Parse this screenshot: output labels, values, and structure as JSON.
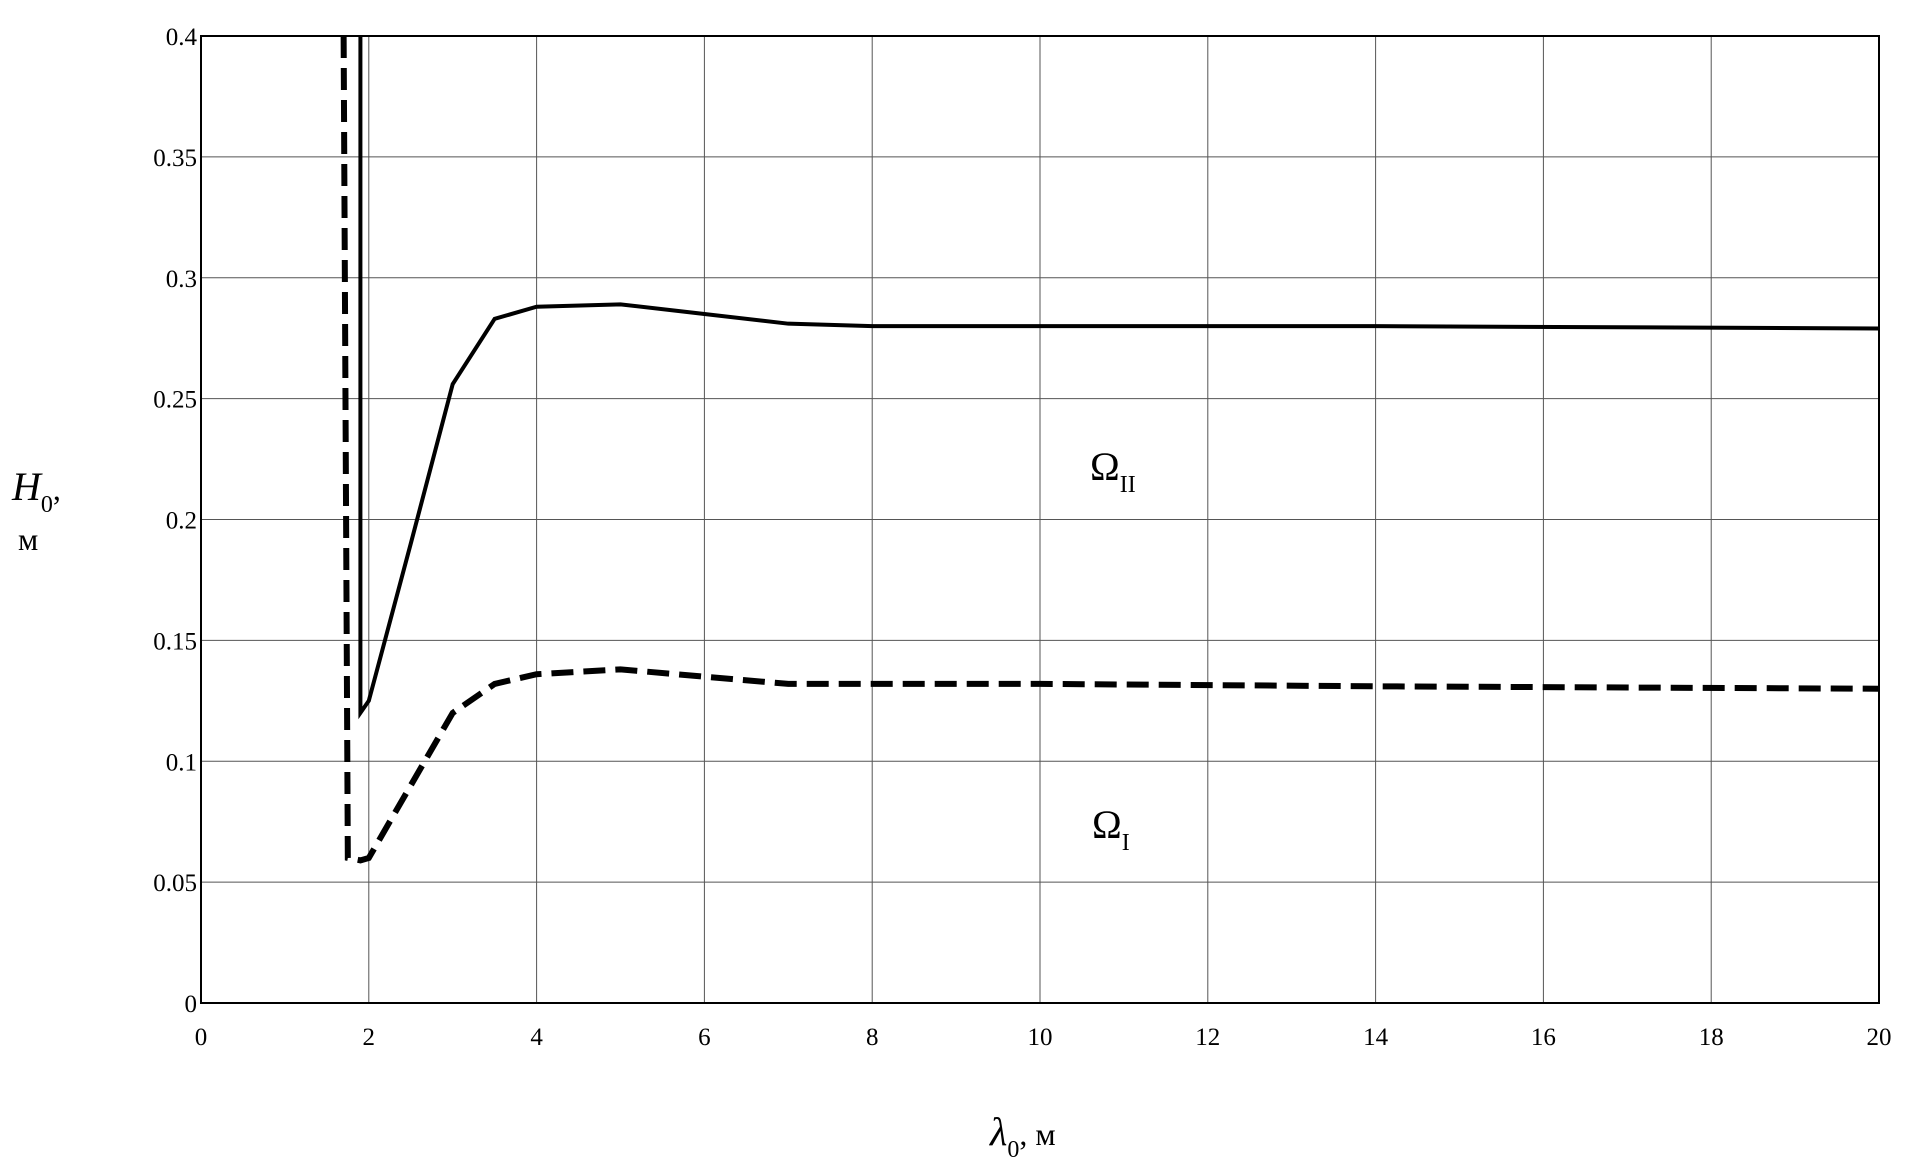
{
  "chart_data": {
    "type": "line",
    "x_label": {
      "symbol": "λ",
      "sub": "0",
      "unit": ", м"
    },
    "y_label": {
      "symbol": "H",
      "sub": "0",
      "unit": ",",
      "unit2": "м"
    },
    "series": [
      {
        "color": "#000000",
        "style": "solid",
        "x": [
          1.9,
          1.9,
          2,
          2.5,
          3,
          3.5,
          4,
          5,
          6,
          7,
          8,
          10,
          14,
          20
        ],
        "values": [
          0.4,
          0.12,
          0.125,
          0.19,
          0.256,
          0.283,
          0.288,
          0.289,
          0.285,
          0.281,
          0.28,
          0.28,
          0.28,
          0.279
        ]
      },
      {
        "color": "#000000",
        "style": "dashed",
        "x": [
          1.7,
          1.75,
          1.9,
          2,
          2.5,
          3,
          3.5,
          4,
          5,
          6,
          7,
          10,
          14,
          20
        ],
        "values": [
          0.4,
          0.06,
          0.059,
          0.06,
          0.09,
          0.12,
          0.132,
          0.136,
          0.138,
          0.135,
          0.132,
          0.132,
          0.131,
          0.13
        ]
      }
    ],
    "annotations": [
      {
        "symbol": "Ω",
        "sub": "II"
      },
      {
        "symbol": "Ω",
        "sub": "I"
      }
    ],
    "xlim": [
      0,
      20
    ],
    "xticks": [
      0,
      2,
      4,
      6,
      8,
      10,
      12,
      14,
      16,
      18,
      20
    ],
    "ylim": [
      0,
      0.4
    ],
    "yticks": [
      0,
      0.05,
      0.1,
      0.15,
      0.2,
      0.25,
      0.3,
      0.35,
      0.4
    ],
    "grid": true
  }
}
